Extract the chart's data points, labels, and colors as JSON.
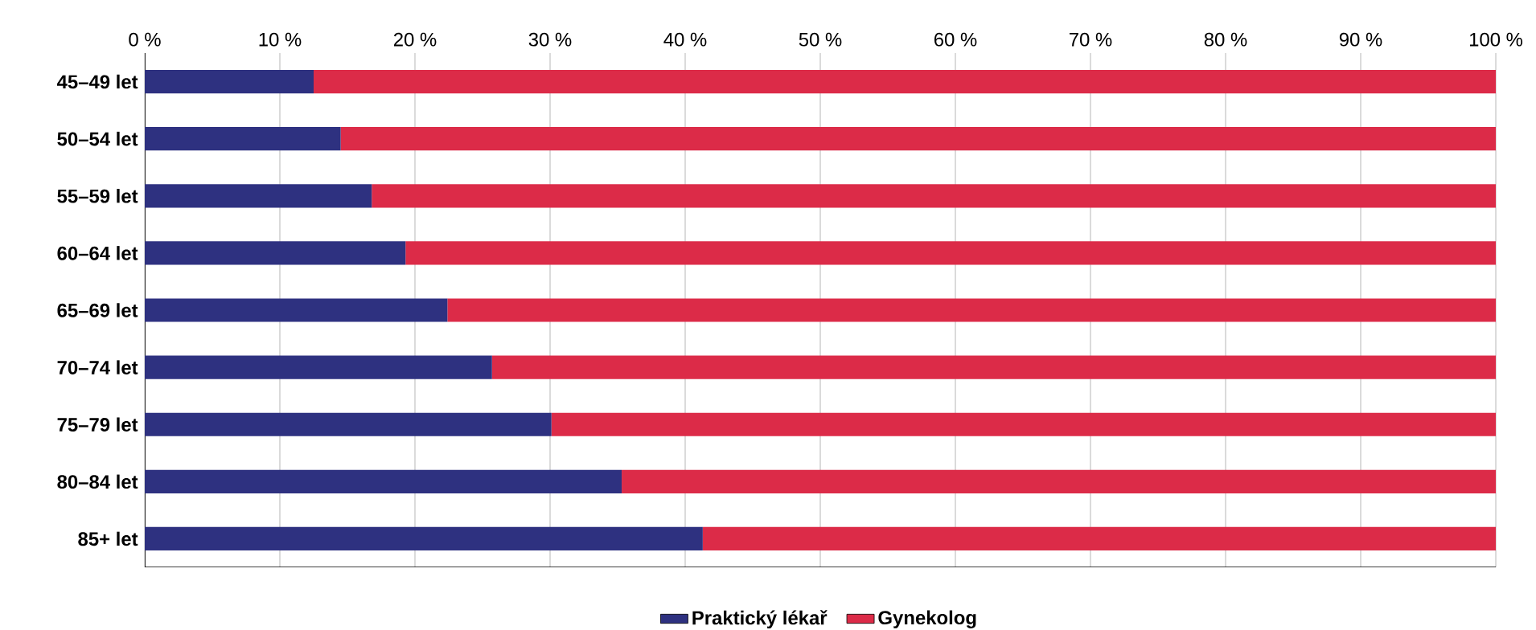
{
  "chart_data": {
    "type": "bar",
    "orientation": "horizontal",
    "stacked": true,
    "categories": [
      "45–49 let",
      "50–54 let",
      "55–59 let",
      "60–64 let",
      "65–69 let",
      "70–74 let",
      "75–79 let",
      "80–84 let",
      "85+ let"
    ],
    "series": [
      {
        "name": "Praktický lékař",
        "color": "#2e3180",
        "values": [
          12.5,
          14.5,
          16.8,
          19.3,
          22.4,
          25.7,
          30.1,
          35.3,
          41.3
        ]
      },
      {
        "name": "Gynekolog",
        "color": "#dc2b48",
        "values": [
          87.5,
          85.5,
          83.2,
          80.7,
          77.6,
          74.3,
          69.9,
          64.7,
          58.7
        ]
      }
    ],
    "xlim": [
      0,
      100
    ],
    "xticks": [
      {
        "value": 0,
        "label": "0 %"
      },
      {
        "value": 10,
        "label": "10 %"
      },
      {
        "value": 20,
        "label": "20 %"
      },
      {
        "value": 30,
        "label": "30 %"
      },
      {
        "value": 40,
        "label": "40 %"
      },
      {
        "value": 50,
        "label": "50 %"
      },
      {
        "value": 60,
        "label": "60 %"
      },
      {
        "value": 70,
        "label": "70 %"
      },
      {
        "value": 80,
        "label": "80 %"
      },
      {
        "value": 90,
        "label": "90 %"
      },
      {
        "value": 100,
        "label": "100 %"
      }
    ],
    "grid": "x",
    "legend": "bottom"
  }
}
